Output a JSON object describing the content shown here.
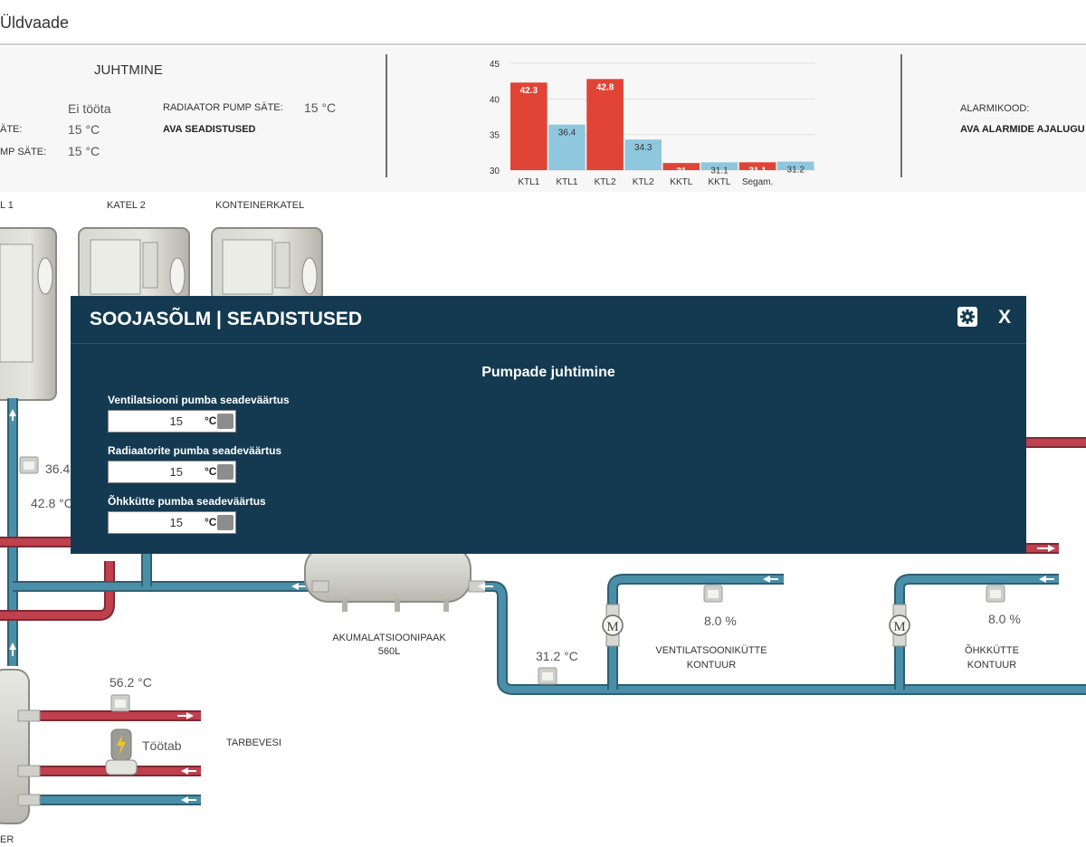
{
  "header": {
    "title": "Üldvaade"
  },
  "control": {
    "heading": "JUHTMINE",
    "status_value": "Ei tööta",
    "row2_label_fragment": "ÄTE:",
    "row2_value": "15 °C",
    "row3_label_fragment": "MP SÄTE:",
    "row3_value": "15 °C",
    "radiator_label": "RADIAATOR PUMP SÄTE:",
    "radiator_value": "15 °C",
    "settings_link": "AVA SEADISTUSED"
  },
  "chart_data": {
    "type": "bar",
    "categories": [
      "KTL1",
      "KTL1",
      "KTL2",
      "KTL2",
      "KKTL",
      "KKTL",
      "Segam.",
      ""
    ],
    "values": [
      42.3,
      36.4,
      42.8,
      34.3,
      31,
      31.1,
      31.1,
      31.2
    ],
    "bar_colors": [
      "#e04436",
      "#8fc8de",
      "#e04436",
      "#8fc8de",
      "#e04436",
      "#8fc8de",
      "#e04436",
      "#8fc8de"
    ],
    "value_labels": [
      "42.3",
      "36.4",
      "42.8",
      "34.3",
      "31",
      "31.1",
      "31.1",
      "31.2"
    ],
    "ylim": [
      30,
      45
    ],
    "yticks": [
      "30",
      "35",
      "40",
      "45"
    ],
    "grid": true
  },
  "alarm": {
    "code_label": "ALARMIKOOD:",
    "history_link": "AVA ALARMIDE AJALUGU"
  },
  "schematic": {
    "boiler1_label": "L 1",
    "boiler2_label": "KATEL 2",
    "container_boiler_label": "KONTEINERKATEL",
    "temp_1": "36.4",
    "temp_2": "42.8 °C",
    "tank_label_line1": "AKUMALATSIOONIPAAK",
    "tank_label_line2": "560L",
    "temp_return": "31.2 °C",
    "vent_percent": "8.0 %",
    "vent_label_line1": "VENTILATSOONIKÜTTE",
    "vent_label_line2": "KONTUUR",
    "air_percent": "8.0 %",
    "air_label_line1": "ÕHKKÜTTE",
    "air_label_line2": "KONTUUR",
    "hot_water_temp": "56.2 °C",
    "pump_status": "Töötab",
    "hot_water_label": "TARBEVESI",
    "bottom_label_fragment": "ER",
    "pump_symbol": "M"
  },
  "modal": {
    "title": "SOOJASÕLM | SEADISTUSED",
    "close_label": "X",
    "subtitle": "Pumpade juhtimine",
    "fields": [
      {
        "label": "Ventilatsiooni pumba seadeväärtus",
        "value": "15",
        "unit": "°C"
      },
      {
        "label": "Radiaatorite pumba seadeväärtus",
        "value": "15",
        "unit": "°C"
      },
      {
        "label": "Õhkkütte pumba seadeväärtus",
        "value": "15",
        "unit": "°C"
      }
    ]
  },
  "colors": {
    "modal_bg": "#143a52",
    "pipe_hot": "#c0404e",
    "pipe_cold": "#4a8fa8",
    "bar_red": "#e04436",
    "bar_blue": "#8fc8de"
  }
}
